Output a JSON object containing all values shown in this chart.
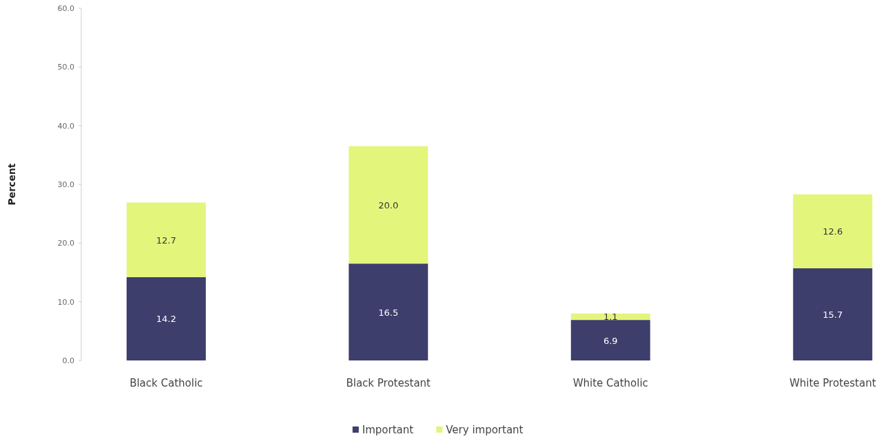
{
  "chart_data": {
    "type": "bar",
    "stacked": true,
    "categories": [
      "Black Catholic",
      "Black Protestant",
      "White Catholic",
      "White Protestant"
    ],
    "series": [
      {
        "name": "Important",
        "color": "#3e3e6c",
        "values": [
          14.2,
          16.5,
          6.9,
          15.7
        ],
        "value_labels": [
          "14.2",
          "16.5",
          "6.9",
          "15.7"
        ]
      },
      {
        "name": "Very important",
        "color": "#e4f57c",
        "values": [
          12.7,
          20.0,
          1.1,
          12.6
        ],
        "value_labels": [
          "12.7",
          "20.0",
          "1.1",
          "12.6"
        ]
      }
    ],
    "ylabel": "Percent",
    "ylim": [
      0,
      60
    ],
    "yticks": [
      {
        "value": 0,
        "label": "0.0"
      },
      {
        "value": 10,
        "label": "10.0"
      },
      {
        "value": 20,
        "label": "20.0"
      },
      {
        "value": 30,
        "label": "30.0"
      },
      {
        "value": 40,
        "label": "40.0"
      },
      {
        "value": 50,
        "label": "50.0"
      },
      {
        "value": 60,
        "label": "60.0"
      }
    ],
    "legend": "bottom",
    "grid": false
  }
}
